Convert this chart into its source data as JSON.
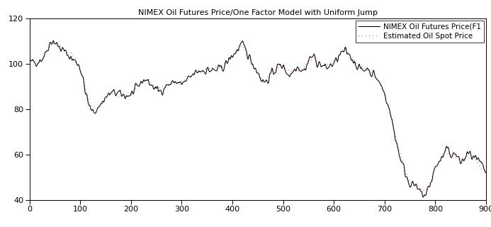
{
  "title": "NIMEX Oil Futures Price/One Factor Model with Uniform Jump",
  "xlim": [
    0,
    900
  ],
  "ylim": [
    40,
    120
  ],
  "xticks": [
    0,
    100,
    200,
    300,
    400,
    500,
    600,
    700,
    800,
    900
  ],
  "yticks": [
    40,
    60,
    80,
    100,
    120
  ],
  "legend_labels": [
    "NIMEX Oil Futures Price(F1",
    "Estimated Oil Spot Price"
  ],
  "line1_color": "#000000",
  "line2_color": "#ff0000",
  "title_fontsize": 8,
  "legend_fontsize": 7.5,
  "tick_fontsize": 8,
  "bg_color": "#ffffff"
}
